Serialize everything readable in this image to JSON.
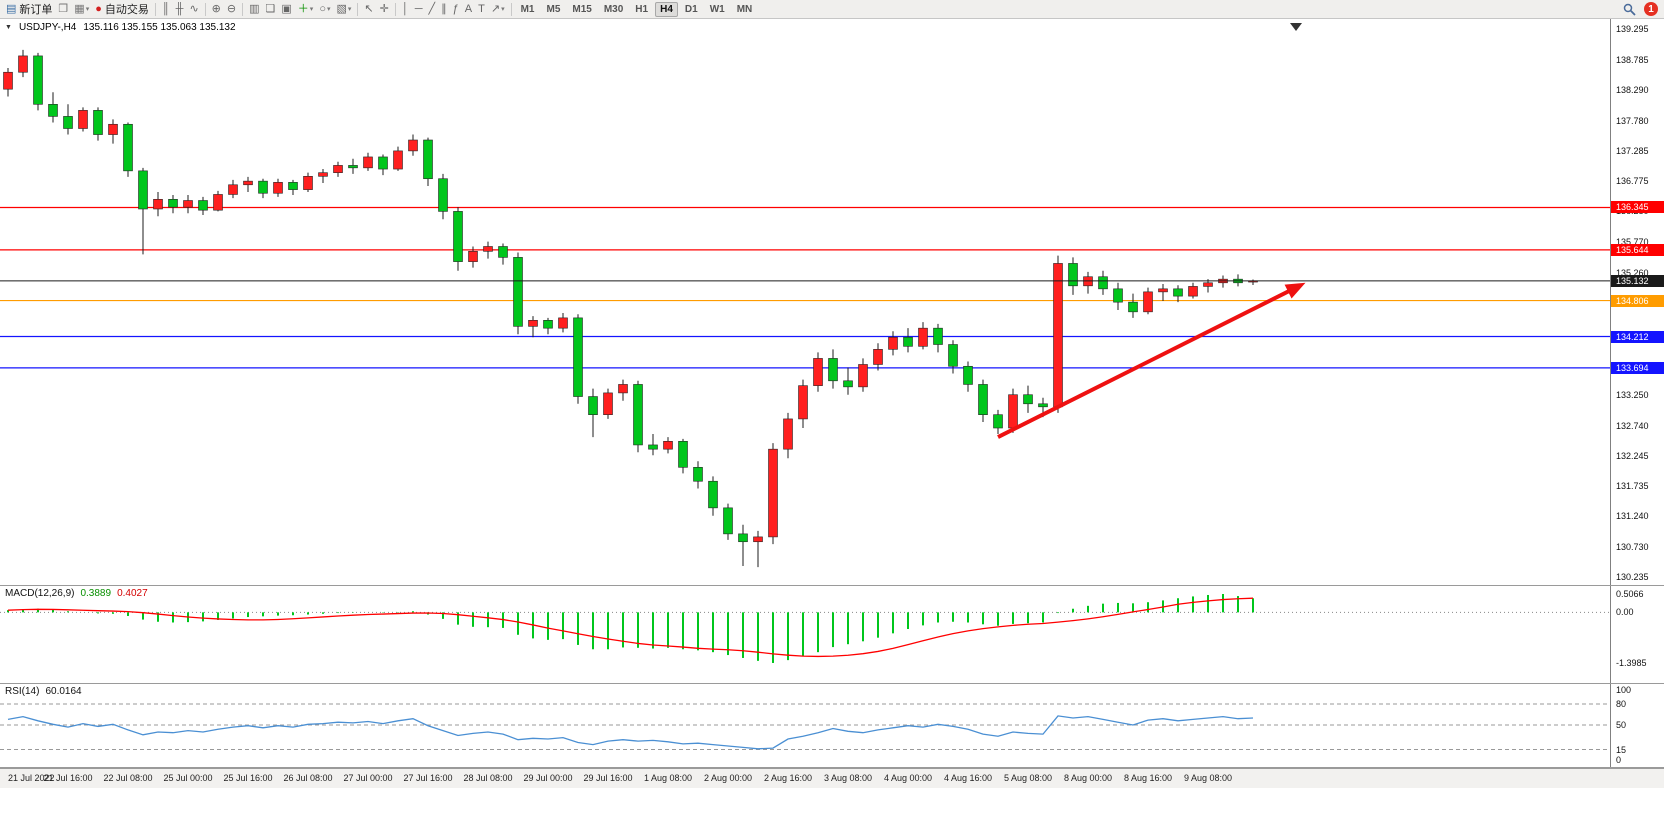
{
  "toolbar": {
    "groups": [
      {
        "items": [
          {
            "name": "new-order-button",
            "glyph": "▤",
            "color": "#3a6ea5",
            "label": "新订单"
          },
          {
            "name": "chart-window-button",
            "glyph": "❐",
            "color": "#777"
          },
          {
            "name": "profiles-button",
            "glyph": "▦",
            "color": "#777",
            "dd": true
          },
          {
            "name": "autotrading-button",
            "glyph": "●",
            "color": "#d42020",
            "label": "自动交易"
          }
        ]
      },
      {
        "items": [
          {
            "name": "bar-chart-mode-button",
            "glyph": "║"
          },
          {
            "name": "candlestick-mode-button",
            "glyph": "╫"
          },
          {
            "name": "line-chart-mode-button",
            "glyph": "∿"
          }
        ]
      },
      {
        "items": [
          {
            "name": "zoom-in-button",
            "glyph": "⊕"
          },
          {
            "name": "zoom-out-button",
            "glyph": "⊖"
          }
        ]
      },
      {
        "items": [
          {
            "name": "tile-windows-button",
            "glyph": "▥"
          },
          {
            "name": "cascade-windows-button",
            "glyph": "❏"
          },
          {
            "name": "arrange-windows-button",
            "glyph": "▣"
          },
          {
            "name": "indicators-button",
            "glyph": "＋",
            "color": "#089000",
            "dd": true
          },
          {
            "name": "periods-button",
            "glyph": "○",
            "dd": true
          },
          {
            "name": "templates-button",
            "glyph": "▧",
            "dd": true
          }
        ]
      },
      {
        "items": [
          {
            "name": "cursor-button",
            "glyph": "↖"
          },
          {
            "name": "crosshair-button",
            "glyph": "✛"
          }
        ]
      },
      {
        "items": [
          {
            "name": "vertical-line-button",
            "glyph": "│"
          },
          {
            "name": "horizontal-line-button",
            "glyph": "─"
          },
          {
            "name": "trendline-button",
            "glyph": "╱"
          },
          {
            "name": "channel-button",
            "glyph": "∥"
          },
          {
            "name": "fibonacci-button",
            "glyph": "ƒ"
          },
          {
            "name": "text-button",
            "glyph": "A"
          },
          {
            "name": "text-label-button",
            "glyph": "T"
          },
          {
            "name": "arrows-tool-button",
            "glyph": "↗",
            "dd": true
          }
        ]
      }
    ],
    "timeframes": [
      "M1",
      "M5",
      "M15",
      "M30",
      "H1",
      "H4",
      "D1",
      "W1",
      "MN"
    ],
    "active_timeframe": "H4",
    "notification_count": "1"
  },
  "chart_header": {
    "collapse_glyph": "▼"
  },
  "colors": {
    "bull_candle": "#ff1f1f",
    "bear_candle": "#00c61c",
    "candle_wick": "#1c1c1c",
    "candle_border": "#262626",
    "macd_histogram": "#00c61c",
    "macd_signal": "#ff0000",
    "rsi_line": "#4a8fd3",
    "current_price": "#1a1a1a",
    "arrow": "#ee1111"
  },
  "chart_data": [
    {
      "type": "candlestick",
      "symbol": "USDJPY-",
      "timeframe": "H4",
      "title": "USDJPY-,H4",
      "ohlc_text": "135.116 135.155 135.063 135.132",
      "ylim": [
        130.105,
        139.46
      ],
      "grid": false,
      "label_step": 4,
      "x_labels": [
        "21 Jul 2022",
        "21 Jul 16:00",
        "22 Jul 08:00",
        "25 Jul 00:00",
        "25 Jul 16:00",
        "26 Jul 08:00",
        "27 Jul 00:00",
        "27 Jul 16:00",
        "28 Jul 08:00",
        "29 Jul 00:00",
        "29 Jul 16:00",
        "1 Aug 08:00",
        "2 Aug 00:00",
        "2 Aug 16:00",
        "3 Aug 08:00",
        "4 Aug 00:00",
        "4 Aug 16:00",
        "5 Aug 08:00",
        "8 Aug 00:00",
        "8 Aug 16:00",
        "9 Aug 08:00"
      ],
      "y_ticks": [
        "139.295",
        "138.785",
        "138.290",
        "137.780",
        "137.285",
        "136.775",
        "136.280",
        "135.770",
        "135.260",
        "133.250",
        "132.740",
        "132.245",
        "131.735",
        "131.240",
        "130.730",
        "130.235"
      ],
      "horizontal_lines": [
        {
          "price": 136.345,
          "label": "136.345",
          "color": "#ff0000"
        },
        {
          "price": 135.644,
          "label": "135.644",
          "color": "#ff0000"
        },
        {
          "price": 135.132,
          "label": "135.132",
          "color": "#1a1a1a",
          "current": true
        },
        {
          "price": 134.806,
          "label": "134.806",
          "color": "#ff9c00"
        },
        {
          "price": 134.212,
          "label": "134.212",
          "color": "#1414ff"
        },
        {
          "price": 133.694,
          "label": "133.694",
          "color": "#1414ff"
        }
      ],
      "trend_arrow": {
        "from": {
          "index": 66,
          "price": 132.55
        },
        "to": {
          "index": 86.5,
          "price": 135.1
        },
        "color": "#ee1111",
        "width": 4
      },
      "candles": [
        [
          138.3,
          138.65,
          138.18,
          138.58
        ],
        [
          138.58,
          138.95,
          138.5,
          138.85
        ],
        [
          138.85,
          138.9,
          137.95,
          138.05
        ],
        [
          138.05,
          138.25,
          137.75,
          137.85
        ],
        [
          137.85,
          138.05,
          137.55,
          137.65
        ],
        [
          137.65,
          138.0,
          137.6,
          137.95
        ],
        [
          137.95,
          138.0,
          137.45,
          137.55
        ],
        [
          137.55,
          137.8,
          137.4,
          137.72
        ],
        [
          137.72,
          137.75,
          136.85,
          136.95
        ],
        [
          136.95,
          137.0,
          135.57,
          136.32
        ],
        [
          136.32,
          136.6,
          136.2,
          136.48
        ],
        [
          136.48,
          136.55,
          136.25,
          136.35
        ],
        [
          136.35,
          136.55,
          136.25,
          136.46
        ],
        [
          136.46,
          136.52,
          136.22,
          136.3
        ],
        [
          136.3,
          136.62,
          136.28,
          136.56
        ],
        [
          136.56,
          136.8,
          136.5,
          136.72
        ],
        [
          136.72,
          136.85,
          136.6,
          136.78
        ],
        [
          136.78,
          136.82,
          136.5,
          136.58
        ],
        [
          136.58,
          136.82,
          136.52,
          136.76
        ],
        [
          136.76,
          136.8,
          136.55,
          136.64
        ],
        [
          136.64,
          136.92,
          136.6,
          136.86
        ],
        [
          136.86,
          136.98,
          136.75,
          136.92
        ],
        [
          136.92,
          137.1,
          136.85,
          137.04
        ],
        [
          137.04,
          137.15,
          136.9,
          137.0
        ],
        [
          137.0,
          137.25,
          136.95,
          137.18
        ],
        [
          137.18,
          137.22,
          136.88,
          136.98
        ],
        [
          136.98,
          137.35,
          136.95,
          137.28
        ],
        [
          137.28,
          137.55,
          137.2,
          137.46
        ],
        [
          137.46,
          137.5,
          136.7,
          136.82
        ],
        [
          136.82,
          136.9,
          136.15,
          136.28
        ],
        [
          136.28,
          136.35,
          135.3,
          135.45
        ],
        [
          135.45,
          135.7,
          135.35,
          135.62
        ],
        [
          135.62,
          135.78,
          135.5,
          135.7
        ],
        [
          135.7,
          135.75,
          135.4,
          135.52
        ],
        [
          135.52,
          135.6,
          134.25,
          134.38
        ],
        [
          134.38,
          134.55,
          134.2,
          134.48
        ],
        [
          134.48,
          134.52,
          134.25,
          134.35
        ],
        [
          134.35,
          134.6,
          134.28,
          134.52
        ],
        [
          134.52,
          134.58,
          133.1,
          133.22
        ],
        [
          133.22,
          133.35,
          132.55,
          132.92
        ],
        [
          132.92,
          133.35,
          132.85,
          133.28
        ],
        [
          133.28,
          133.5,
          133.15,
          133.42
        ],
        [
          133.42,
          133.48,
          132.3,
          132.42
        ],
        [
          132.42,
          132.6,
          132.25,
          132.35
        ],
        [
          132.35,
          132.55,
          132.28,
          132.48
        ],
        [
          132.48,
          132.52,
          131.95,
          132.05
        ],
        [
          132.05,
          132.15,
          131.7,
          131.82
        ],
        [
          131.82,
          131.9,
          131.25,
          131.38
        ],
        [
          131.38,
          131.45,
          130.85,
          130.95
        ],
        [
          130.95,
          131.1,
          130.42,
          130.82
        ],
        [
          130.82,
          131.0,
          130.4,
          130.9
        ],
        [
          130.9,
          132.45,
          130.78,
          132.35
        ],
        [
          132.35,
          132.95,
          132.2,
          132.85
        ],
        [
          132.85,
          133.5,
          132.7,
          133.4
        ],
        [
          133.4,
          133.95,
          133.3,
          133.85
        ],
        [
          133.85,
          134.0,
          133.35,
          133.48
        ],
        [
          133.48,
          133.7,
          133.25,
          133.38
        ],
        [
          133.38,
          133.85,
          133.3,
          133.75
        ],
        [
          133.75,
          134.1,
          133.65,
          134.0
        ],
        [
          134.0,
          134.3,
          133.9,
          134.2
        ],
        [
          134.2,
          134.35,
          133.95,
          134.05
        ],
        [
          134.05,
          134.45,
          134.0,
          134.35
        ],
        [
          134.35,
          134.42,
          133.95,
          134.08
        ],
        [
          134.08,
          134.15,
          133.6,
          133.72
        ],
        [
          133.72,
          133.8,
          133.3,
          133.42
        ],
        [
          133.42,
          133.5,
          132.8,
          132.92
        ],
        [
          132.92,
          133.0,
          132.6,
          132.7
        ],
        [
          132.7,
          133.35,
          132.62,
          133.25
        ],
        [
          133.25,
          133.4,
          132.95,
          133.1
        ],
        [
          133.1,
          133.2,
          132.88,
          133.05
        ],
        [
          133.05,
          135.55,
          132.95,
          135.42
        ],
        [
          135.42,
          135.52,
          134.9,
          135.05
        ],
        [
          135.05,
          135.28,
          134.92,
          135.2
        ],
        [
          135.2,
          135.3,
          134.9,
          135.0
        ],
        [
          135.0,
          135.1,
          134.65,
          134.78
        ],
        [
          134.78,
          134.92,
          134.52,
          134.62
        ],
        [
          134.62,
          135.02,
          134.58,
          134.95
        ],
        [
          134.95,
          135.08,
          134.8,
          135.0
        ],
        [
          135.0,
          135.06,
          134.78,
          134.88
        ],
        [
          134.88,
          135.1,
          134.84,
          135.04
        ],
        [
          135.04,
          135.16,
          134.94,
          135.1
        ],
        [
          135.1,
          135.22,
          135.02,
          135.16
        ],
        [
          135.16,
          135.24,
          135.04,
          135.1
        ],
        [
          135.116,
          135.155,
          135.063,
          135.132
        ]
      ]
    },
    {
      "type": "bar",
      "title": "MACD(12,26,9)",
      "main_value_text": "0.3889",
      "signal_value_text": "0.4027",
      "ylim": [
        -1.952,
        0.728
      ],
      "y_ticks": [
        "0.5066",
        "0.00",
        "-1.3985"
      ],
      "signal_period": 9,
      "histogram": [
        0.06,
        0.09,
        0.1,
        0.07,
        0.03,
        0.0,
        -0.03,
        -0.04,
        -0.1,
        -0.2,
        -0.26,
        -0.28,
        -0.27,
        -0.25,
        -0.21,
        -0.17,
        -0.13,
        -0.11,
        -0.09,
        -0.08,
        -0.06,
        -0.04,
        -0.02,
        -0.01,
        0.0,
        -0.01,
        0.01,
        0.03,
        -0.06,
        -0.18,
        -0.34,
        -0.4,
        -0.41,
        -0.43,
        -0.62,
        -0.72,
        -0.76,
        -0.74,
        -0.9,
        -1.02,
        -1.02,
        -0.97,
        -0.98,
        -1.0,
        -0.98,
        -1.02,
        -1.05,
        -1.1,
        -1.18,
        -1.26,
        -1.34,
        -1.3985,
        -1.32,
        -1.22,
        -1.1,
        -0.96,
        -0.88,
        -0.8,
        -0.7,
        -0.58,
        -0.46,
        -0.36,
        -0.28,
        -0.26,
        -0.28,
        -0.33,
        -0.37,
        -0.32,
        -0.3,
        -0.28,
        -0.02,
        0.1,
        0.18,
        0.24,
        0.26,
        0.25,
        0.28,
        0.33,
        0.39,
        0.44,
        0.48,
        0.5066,
        0.45,
        0.3889
      ]
    },
    {
      "type": "line",
      "title": "RSI(14)",
      "value_text": "60.0164",
      "ylim": [
        -10,
        108.6
      ],
      "levels": [
        80,
        50,
        15
      ],
      "y_ticks": [
        "100",
        "80",
        "50",
        "15",
        "0"
      ],
      "values": [
        58,
        62,
        56,
        51,
        47,
        52,
        48,
        51,
        43,
        36,
        40,
        39,
        42,
        40,
        44,
        47,
        49,
        46,
        49,
        47,
        51,
        52,
        54,
        53,
        55,
        52,
        56,
        59,
        49,
        42,
        35,
        38,
        40,
        37,
        29,
        31,
        30,
        32,
        25,
        22,
        27,
        29,
        27,
        28,
        26,
        23,
        24,
        22,
        20,
        18,
        16,
        17,
        30,
        34,
        39,
        45,
        41,
        39,
        43,
        46,
        49,
        47,
        51,
        48,
        44,
        37,
        34,
        40,
        38,
        37,
        63,
        60,
        62,
        58,
        54,
        50,
        57,
        59,
        56,
        58,
        60,
        62,
        59,
        60.0164
      ]
    }
  ]
}
